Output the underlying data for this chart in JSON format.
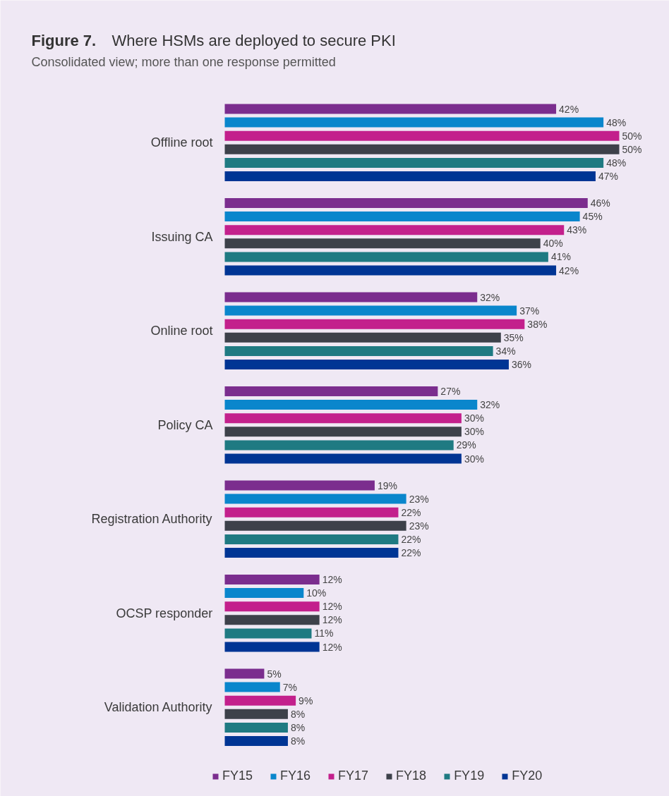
{
  "chart_data": {
    "type": "bar",
    "orientation": "horizontal",
    "title": "Figure 7. Where HSMs are deployed to secure PKI",
    "subtitle": "Consolidated view; more than one response permitted",
    "categories": [
      "Offline root",
      "Issuing CA",
      "Online root",
      "Policy CA",
      "Registration Authority",
      "OCSP responder",
      "Validation Authority"
    ],
    "legend": "bottom",
    "series": [
      {
        "name": "FY15",
        "color": "#7b2d8e",
        "values": [
          42,
          46,
          32,
          27,
          19,
          12,
          5
        ],
        "value_labels": [
          "42%",
          "46%",
          "32%",
          "27%",
          "19%",
          "12%",
          "5%"
        ]
      },
      {
        "name": "FY16",
        "color": "#0a86cc",
        "values": [
          48,
          45,
          37,
          32,
          23,
          10,
          7
        ],
        "value_labels": [
          "48%",
          "45%",
          "37%",
          "32%",
          "23%",
          "10%",
          "7%"
        ]
      },
      {
        "name": "FY17",
        "color": "#c3208c",
        "values": [
          50,
          43,
          38,
          30,
          22,
          12,
          9
        ],
        "value_labels": [
          "50%",
          "43%",
          "38%",
          "30%",
          "22%",
          "12%",
          "9%"
        ]
      },
      {
        "name": "FY18",
        "color": "#3d414a",
        "values": [
          50,
          40,
          35,
          30,
          23,
          12,
          8
        ],
        "value_labels": [
          "50%",
          "40%",
          "35%",
          "30%",
          "23%",
          "12%",
          "8%"
        ]
      },
      {
        "name": "FY19",
        "color": "#1f7a82",
        "values": [
          48,
          41,
          34,
          29,
          22,
          11,
          8
        ],
        "value_labels": [
          "48%",
          "41%",
          "34%",
          "29%",
          "22%",
          "11%",
          "8%"
        ]
      },
      {
        "name": "FY20",
        "color": "#003594",
        "values": [
          47,
          42,
          36,
          30,
          22,
          12,
          8
        ],
        "value_labels": [
          "47%",
          "42%",
          "36%",
          "30%",
          "22%",
          "12%",
          "8%"
        ]
      }
    ]
  }
}
